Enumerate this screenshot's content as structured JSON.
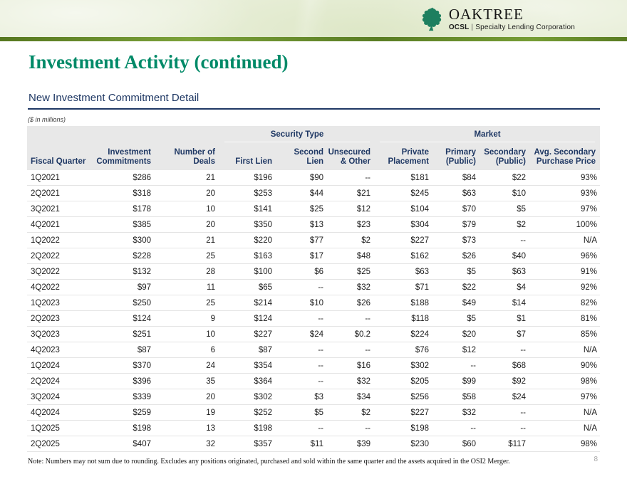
{
  "brand": {
    "name": "OAKTREE",
    "sub_bold": "OCSL",
    "sub_sep": "|",
    "sub_rest": "Specialty Lending Corporation"
  },
  "page": {
    "title": "Investment Activity (continued)",
    "subtitle": "New Investment Commitment Detail",
    "units_note": "($ in millions)",
    "footnote": "Note: Numbers may not sum due to rounding. Excludes any positions originated, purchased and sold within the same quarter and the assets acquired in the OSI2 Merger.",
    "page_number": "8"
  },
  "colors": {
    "title_green": "#008a68",
    "navy": "#1f3864",
    "band_green": "#e9efda",
    "accent_dark": "#56771f",
    "accent_light": "#7ca23a",
    "table_header_bg": "#e8e8e8",
    "row_border": "#e4e4e4",
    "leaf_green": "#1d7f5f",
    "page_num_gray": "#a6a6a6"
  },
  "table": {
    "group_headers": [
      {
        "label": "Security Type"
      },
      {
        "label": "Market"
      }
    ],
    "columns": [
      "Fiscal Quarter",
      "Investment\nCommitments",
      "Number of Deals",
      "First Lien",
      "Second Lien",
      "Unsecured\n& Other",
      "Private\nPlacement",
      "Primary\n(Public)",
      "Secondary\n(Public)",
      "Avg. Secondary\nPurchase Price"
    ],
    "rows": [
      [
        "1Q2021",
        "$286",
        "21",
        "$196",
        "$90",
        "--",
        "$181",
        "$84",
        "$22",
        "93%"
      ],
      [
        "2Q2021",
        "$318",
        "20",
        "$253",
        "$44",
        "$21",
        "$245",
        "$63",
        "$10",
        "93%"
      ],
      [
        "3Q2021",
        "$178",
        "10",
        "$141",
        "$25",
        "$12",
        "$104",
        "$70",
        "$5",
        "97%"
      ],
      [
        "4Q2021",
        "$385",
        "20",
        "$350",
        "$13",
        "$23",
        "$304",
        "$79",
        "$2",
        "100%"
      ],
      [
        "1Q2022",
        "$300",
        "21",
        "$220",
        "$77",
        "$2",
        "$227",
        "$73",
        "--",
        "N/A"
      ],
      [
        "2Q2022",
        "$228",
        "25",
        "$163",
        "$17",
        "$48",
        "$162",
        "$26",
        "$40",
        "96%"
      ],
      [
        "3Q2022",
        "$132",
        "28",
        "$100",
        "$6",
        "$25",
        "$63",
        "$5",
        "$63",
        "91%"
      ],
      [
        "4Q2022",
        "$97",
        "11",
        "$65",
        "--",
        "$32",
        "$71",
        "$22",
        "$4",
        "92%"
      ],
      [
        "1Q2023",
        "$250",
        "25",
        "$214",
        "$10",
        "$26",
        "$188",
        "$49",
        "$14",
        "82%"
      ],
      [
        "2Q2023",
        "$124",
        "9",
        "$124",
        "--",
        "--",
        "$118",
        "$5",
        "$1",
        "81%"
      ],
      [
        "3Q2023",
        "$251",
        "10",
        "$227",
        "$24",
        "$0.2",
        "$224",
        "$20",
        "$7",
        "85%"
      ],
      [
        "4Q2023",
        "$87",
        "6",
        "$87",
        "--",
        "--",
        "$76",
        "$12",
        "--",
        "N/A"
      ],
      [
        "1Q2024",
        "$370",
        "24",
        "$354",
        "--",
        "$16",
        "$302",
        "--",
        "$68",
        "90%"
      ],
      [
        "2Q2024",
        "$396",
        "35",
        "$364",
        "--",
        "$32",
        "$205",
        "$99",
        "$92",
        "98%"
      ],
      [
        "3Q2024",
        "$339",
        "20",
        "$302",
        "$3",
        "$34",
        "$256",
        "$58",
        "$24",
        "97%"
      ],
      [
        "4Q2024",
        "$259",
        "19",
        "$252",
        "$5",
        "$2",
        "$227",
        "$32",
        "--",
        "N/A"
      ],
      [
        "1Q2025",
        "$198",
        "13",
        "$198",
        "--",
        "--",
        "$198",
        "--",
        "--",
        "N/A"
      ],
      [
        "2Q2025",
        "$407",
        "32",
        "$357",
        "$11",
        "$39",
        "$230",
        "$60",
        "$117",
        "98%"
      ]
    ]
  }
}
